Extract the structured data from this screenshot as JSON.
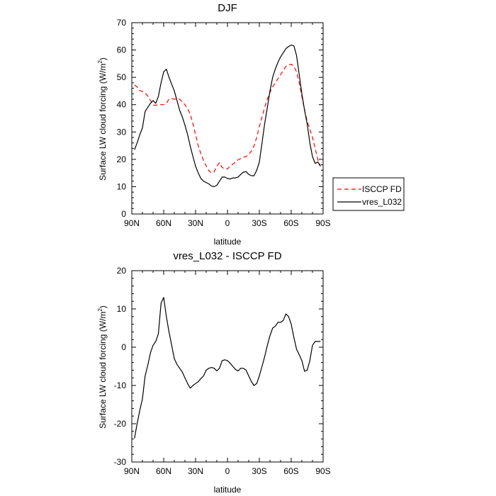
{
  "chart_data": [
    {
      "type": "line",
      "title": "DJF",
      "xlabel": "latitude",
      "ylabel": "Surface LW cloud forcing (W/m²)",
      "ylabel_main": "Surface LW cloud forcing (W/m",
      "ylabel_sup": "2",
      "ylabel_close": ")",
      "xlim": [
        90,
        -90
      ],
      "ylim": [
        0,
        70
      ],
      "xticks": [
        90,
        60,
        30,
        0,
        -30,
        -60,
        -90
      ],
      "xtick_labels": [
        "90N",
        "60N",
        "30N",
        "0",
        "30S",
        "60S",
        "90S"
      ],
      "yticks": [
        0,
        10,
        20,
        30,
        40,
        50,
        60,
        70
      ],
      "ytick_labels": [
        "0",
        "10",
        "20",
        "30",
        "40",
        "50",
        "60",
        "70"
      ],
      "legend": {
        "placement": "right-middle",
        "entries": [
          "ISCCP FD",
          "vres_L032"
        ]
      },
      "series": [
        {
          "name": "ISCCP FD",
          "color": "#ff0000",
          "style": "dashed",
          "x": [
            87.5,
            85,
            82.5,
            80,
            77.5,
            75,
            72.5,
            70,
            67.5,
            65,
            62.5,
            60,
            57.5,
            55,
            52.5,
            50,
            47.5,
            45,
            42.5,
            40,
            37.5,
            35,
            32.5,
            30,
            27.5,
            25,
            22.5,
            20,
            17.5,
            15,
            12.5,
            10,
            7.5,
            5,
            2.5,
            0,
            -2.5,
            -5,
            -7.5,
            -10,
            -12.5,
            -15,
            -17.5,
            -20,
            -22.5,
            -25,
            -27.5,
            -30,
            -32.5,
            -35,
            -37.5,
            -40,
            -42.5,
            -45,
            -47.5,
            -50,
            -52.5,
            -55,
            -57.5,
            -60,
            -62.5,
            -65,
            -67.5,
            -70,
            -72.5,
            -75,
            -77.5,
            -80,
            -82.5,
            -85,
            -87.5
          ],
          "values": [
            47.2,
            46.5,
            45.2,
            44.8,
            44.2,
            43.2,
            41.6,
            39.8,
            39.8,
            40.0,
            40.0,
            40.0,
            40.5,
            42.0,
            42.2,
            42.0,
            42.2,
            42.0,
            41.0,
            40.0,
            38.5,
            36.5,
            33.0,
            29.0,
            25.0,
            22.0,
            19.5,
            17.5,
            15.8,
            15.0,
            15.5,
            17.5,
            18.8,
            17.0,
            16.5,
            16.5,
            17.5,
            18.2,
            19.0,
            19.8,
            20.3,
            20.8,
            21.0,
            21.8,
            23.0,
            25.0,
            28.0,
            32.0,
            35.5,
            39.0,
            42.0,
            44.5,
            46.5,
            48.0,
            49.5,
            51.0,
            52.5,
            54.0,
            54.5,
            54.8,
            54.0,
            52.0,
            48.0,
            43.0,
            38.0,
            34.0,
            31.0,
            28.0,
            24.0,
            20.0,
            17.5
          ]
        },
        {
          "name": "vres_L032",
          "color": "#000000",
          "style": "solid",
          "x": [
            87.5,
            85,
            82.5,
            80,
            77.5,
            75,
            72.5,
            70,
            67.5,
            65,
            62.5,
            60,
            57.5,
            55,
            52.5,
            50,
            47.5,
            45,
            42.5,
            40,
            37.5,
            35,
            32.5,
            30,
            27.5,
            25,
            22.5,
            20,
            17.5,
            15,
            12.5,
            10,
            7.5,
            5,
            2.5,
            0,
            -2.5,
            -5,
            -7.5,
            -10,
            -12.5,
            -15,
            -17.5,
            -20,
            -22.5,
            -25,
            -27.5,
            -30,
            -32.5,
            -35,
            -37.5,
            -40,
            -42.5,
            -45,
            -47.5,
            -50,
            -52.5,
            -55,
            -57.5,
            -60,
            -62.5,
            -65,
            -67.5,
            -70,
            -72.5,
            -75,
            -77.5,
            -80,
            -82.5,
            -85,
            -87.5
          ],
          "values": [
            23.5,
            26.0,
            29.0,
            31.5,
            37.5,
            39.0,
            40.5,
            41.5,
            40.5,
            43.0,
            48.0,
            52.0,
            53.0,
            50.0,
            47.5,
            45.0,
            41.5,
            38.0,
            35.5,
            32.5,
            29.0,
            24.8,
            21.0,
            17.5,
            15.0,
            13.0,
            12.0,
            11.5,
            11.0,
            10.2,
            10.0,
            10.5,
            12.0,
            13.5,
            13.5,
            13.0,
            12.8,
            13.2,
            13.2,
            13.5,
            14.5,
            15.3,
            15.5,
            14.5,
            14.0,
            14.0,
            16.0,
            19.0,
            26.0,
            33.0,
            39.0,
            45.0,
            50.0,
            53.0,
            55.5,
            57.5,
            59.0,
            60.5,
            61.3,
            61.8,
            61.5,
            58.0,
            51.0,
            44.0,
            38.0,
            33.0,
            26.0,
            21.0,
            18.5,
            19.0,
            17.5
          ]
        }
      ]
    },
    {
      "type": "line",
      "title": "vres_L032 - ISCCP FD",
      "xlabel": "latitude",
      "ylabel": "Surface LW cloud forcing (W/m²)",
      "ylabel_main": "Surface LW cloud forcing (W/m",
      "ylabel_sup": "2",
      "ylabel_close": ")",
      "xlim": [
        90,
        -90
      ],
      "ylim": [
        -30,
        20
      ],
      "xticks": [
        90,
        60,
        30,
        0,
        -30,
        -60,
        -90
      ],
      "xtick_labels": [
        "90N",
        "60N",
        "30N",
        "0",
        "30S",
        "60S",
        "90S"
      ],
      "yticks": [
        -30,
        -20,
        -10,
        0,
        10,
        20
      ],
      "ytick_labels": [
        "-30",
        "-20",
        "-10",
        "0",
        "10",
        "20"
      ],
      "series": [
        {
          "name": "vres_L032 - ISCCP FD",
          "color": "#000000",
          "style": "solid",
          "x": [
            87.5,
            85,
            82.5,
            80,
            77.5,
            75,
            72.5,
            70,
            67.5,
            65,
            62.5,
            60,
            57.5,
            55,
            52.5,
            50,
            47.5,
            45,
            42.5,
            40,
            37.5,
            35,
            32.5,
            30,
            27.5,
            25,
            22.5,
            20,
            17.5,
            15,
            12.5,
            10,
            7.5,
            5,
            2.5,
            0,
            -2.5,
            -5,
            -7.5,
            -10,
            -12.5,
            -15,
            -17.5,
            -20,
            -22.5,
            -25,
            -27.5,
            -30,
            -32.5,
            -35,
            -37.5,
            -40,
            -42.5,
            -45,
            -47.5,
            -50,
            -52.5,
            -55,
            -57.5,
            -60,
            -62.5,
            -65,
            -67.5,
            -70,
            -72.5,
            -75,
            -77.5,
            -80,
            -82.5,
            -85,
            -87.5
          ],
          "values": [
            -23.8,
            -20.0,
            -16.5,
            -13.5,
            -7.5,
            -4.8,
            -1.5,
            0.5,
            1.5,
            3.5,
            11.5,
            13.0,
            8.0,
            4.0,
            0.5,
            -3.0,
            -4.5,
            -5.5,
            -6.5,
            -8.0,
            -9.5,
            -10.7,
            -10.0,
            -9.5,
            -9.0,
            -8.2,
            -7.5,
            -6.0,
            -5.5,
            -5.3,
            -5.5,
            -6.2,
            -5.5,
            -3.5,
            -3.3,
            -3.5,
            -4.2,
            -5.0,
            -5.8,
            -6.2,
            -5.5,
            -5.5,
            -6.0,
            -7.5,
            -9.0,
            -10.0,
            -9.5,
            -7.5,
            -5.0,
            -2.5,
            0.5,
            3.0,
            5.0,
            5.5,
            6.5,
            6.5,
            7.0,
            8.7,
            8.0,
            6.0,
            2.5,
            -0.5,
            -2.0,
            -3.5,
            -6.3,
            -6.0,
            -3.5,
            0.5,
            1.5,
            1.5,
            1.5
          ]
        }
      ]
    }
  ]
}
